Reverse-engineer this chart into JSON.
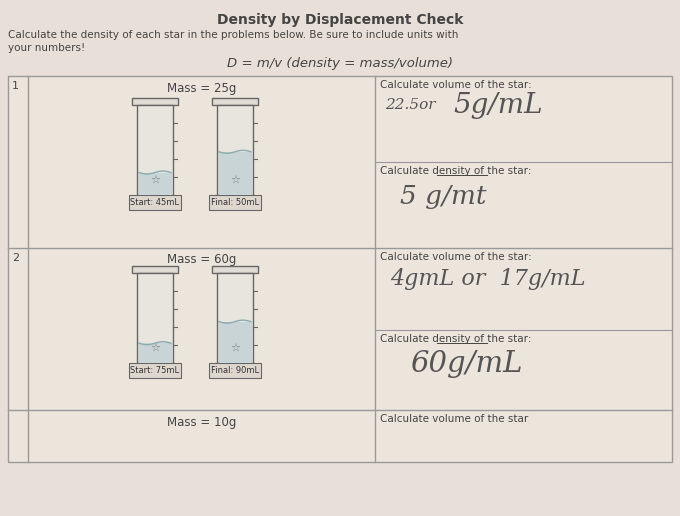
{
  "title": "Density by Displacement Check",
  "subtitle1": "Calculate the density of each star in the problems below. Be sure to include units with",
  "subtitle2": "your numbers!",
  "formula": "D = m/v (density = mass/volume)",
  "bg_color": "#e8e0d8",
  "table_bg": "#ece5dc",
  "border_color": "#999999",
  "text_color": "#444444",
  "row1_num": "1",
  "row1_mass": "Mass = 25g",
  "row1_start": "Start: 45mL",
  "row1_final": "Final: 50mL",
  "row1_vol_label": "Calculate volume of the star:",
  "row1_vol_answer2": "22.5or",
  "row1_vol_answer": "5g/mL",
  "row1_den_label": "Calculate density of the star:",
  "row1_den_answer": "5 g/mt",
  "row2_num": "2",
  "row2_mass": "Mass = 60g",
  "row2_start": "Start: 75mL",
  "row2_final": "Final: 90mL",
  "row2_vol_label": "Calculate volume of the star:",
  "row2_vol_answer": "4gmL or  17g/mL",
  "row2_den_label": "Calculate density of the star:",
  "row2_den_answer": "60g/mL",
  "row3_mass": "Mass = 10g",
  "row3_vol_label": "Calculate volume of the star"
}
